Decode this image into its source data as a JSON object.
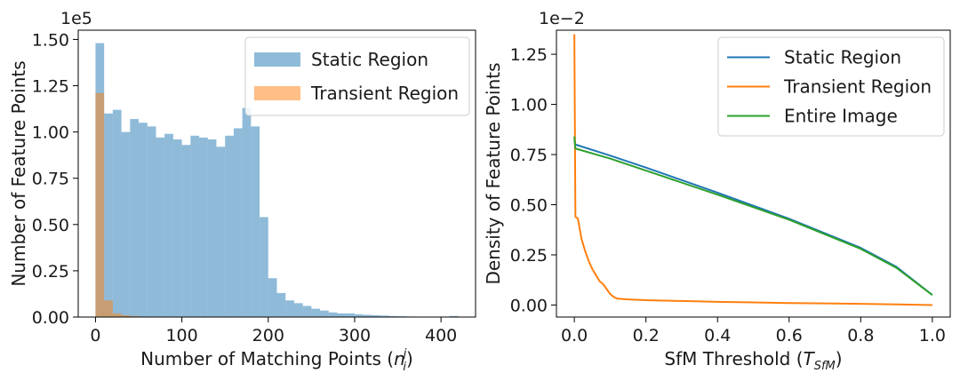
{
  "chart_data": [
    {
      "type": "bar",
      "subtype": "histogram",
      "xlabel": "Number of Matching Points (",
      "xlabel_math": {
        "base": "n",
        "sub": "i",
        "sup": "j"
      },
      "xlabel_close": ")",
      "ylabel": "Number of Feature Points",
      "scale_label": "1e5",
      "xlim": [
        -20,
        440
      ],
      "ylim": [
        0,
        1.55
      ],
      "xticks": [
        0,
        100,
        200,
        300,
        400
      ],
      "xtick_labels": [
        "0",
        "100",
        "200",
        "300",
        "400"
      ],
      "yticks": [
        0,
        0.25,
        0.5,
        0.75,
        1.0,
        1.25,
        1.5
      ],
      "ytick_labels": [
        "0.00",
        "0.25",
        "0.50",
        "0.75",
        "1.00",
        "1.25",
        "1.50"
      ],
      "bin_start": 0,
      "bin_width": 10,
      "legend_position": "top-right",
      "series": [
        {
          "name": "Static Region",
          "color": "#1f77b4",
          "values": [
            1.48,
            1.1,
            1.12,
            1.0,
            1.07,
            1.05,
            1.03,
            0.97,
            0.99,
            0.96,
            0.93,
            0.98,
            0.97,
            0.96,
            0.92,
            0.98,
            1.02,
            1.13,
            1.03,
            0.54,
            0.21,
            0.13,
            0.09,
            0.075,
            0.06,
            0.045,
            0.035,
            0.025,
            0.02,
            0.02,
            0.015,
            0.012,
            0.01,
            0.008,
            0.005,
            0.004,
            0.003,
            0.002,
            0.002,
            0.001,
            0.001,
            0.006
          ]
        },
        {
          "name": "Transient Region",
          "color": "#ff7f0e",
          "values": [
            1.21,
            0.09,
            0.02,
            0.01,
            0.005,
            0.003,
            0.002,
            0.001
          ]
        }
      ]
    },
    {
      "type": "line",
      "xlabel": "SfM Threshold (",
      "xlabel_math": {
        "base": "T",
        "sub": "SfM"
      },
      "xlabel_close": ")",
      "ylabel": "Density of Feature Points",
      "scale_label": "1e−2",
      "xlim": [
        -0.05,
        1.05
      ],
      "ylim": [
        -0.06,
        1.37
      ],
      "xticks": [
        0.0,
        0.2,
        0.4,
        0.6,
        0.8,
        1.0
      ],
      "xtick_labels": [
        "0.0",
        "0.2",
        "0.4",
        "0.6",
        "0.8",
        "1.0"
      ],
      "yticks": [
        0,
        0.25,
        0.5,
        0.75,
        1.0,
        1.25
      ],
      "ytick_labels": [
        "0.00",
        "0.25",
        "0.50",
        "0.75",
        "1.00",
        "1.25"
      ],
      "legend_position": "top-right",
      "series": [
        {
          "name": "Static Region",
          "color": "#1f77b4",
          "points": [
            [
              0.0,
              0.82
            ],
            [
              0.003,
              0.8
            ],
            [
              0.1,
              0.745
            ],
            [
              0.2,
              0.685
            ],
            [
              0.4,
              0.56
            ],
            [
              0.6,
              0.43
            ],
            [
              0.8,
              0.285
            ],
            [
              0.9,
              0.19
            ],
            [
              1.0,
              0.05
            ]
          ]
        },
        {
          "name": "Transient Region",
          "color": "#ff7f0e",
          "points": [
            [
              0.0,
              1.35
            ],
            [
              0.003,
              0.44
            ],
            [
              0.01,
              0.43
            ],
            [
              0.02,
              0.33
            ],
            [
              0.03,
              0.27
            ],
            [
              0.04,
              0.22
            ],
            [
              0.05,
              0.18
            ],
            [
              0.06,
              0.15
            ],
            [
              0.07,
              0.12
            ],
            [
              0.08,
              0.105
            ],
            [
              0.09,
              0.08
            ],
            [
              0.1,
              0.055
            ],
            [
              0.11,
              0.04
            ],
            [
              0.12,
              0.032
            ],
            [
              0.15,
              0.028
            ],
            [
              0.2,
              0.024
            ],
            [
              0.3,
              0.02
            ],
            [
              0.4,
              0.016
            ],
            [
              0.5,
              0.013
            ],
            [
              0.6,
              0.01
            ],
            [
              0.7,
              0.008
            ],
            [
              0.8,
              0.006
            ],
            [
              0.9,
              0.003
            ],
            [
              1.0,
              0.0
            ]
          ]
        },
        {
          "name": "Entire Image",
          "color": "#2ca02c",
          "points": [
            [
              0.0,
              0.84
            ],
            [
              0.003,
              0.78
            ],
            [
              0.1,
              0.73
            ],
            [
              0.2,
              0.67
            ],
            [
              0.4,
              0.55
            ],
            [
              0.6,
              0.425
            ],
            [
              0.8,
              0.28
            ],
            [
              0.9,
              0.185
            ],
            [
              1.0,
              0.05
            ]
          ]
        }
      ]
    }
  ]
}
